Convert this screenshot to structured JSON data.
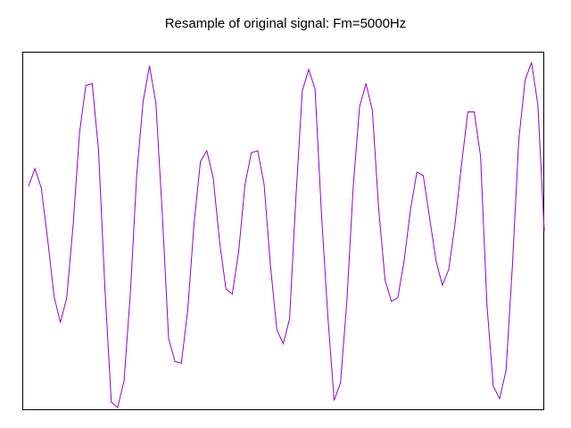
{
  "colors": {
    "background": "#ffffff",
    "frame": "#000000",
    "series": "#9400d3"
  },
  "chart_data": {
    "type": "line",
    "title": "Resample of original signal: Fm=5000Hz",
    "xlabel": "",
    "ylabel": "",
    "grid": false,
    "legend": "none",
    "x_unit": "sample index",
    "ylim": [
      -1.0,
      1.0
    ],
    "series": [
      {
        "color": "#9400d3",
        "values": [
          0.25,
          0.35,
          0.24,
          -0.05,
          -0.37,
          -0.52,
          -0.38,
          0.03,
          0.55,
          0.82,
          0.83,
          0.45,
          -0.33,
          -0.97,
          -1.0,
          -0.85,
          -0.35,
          0.32,
          0.73,
          0.93,
          0.72,
          0.1,
          -0.61,
          -0.74,
          -0.75,
          -0.45,
          0.04,
          0.39,
          0.45,
          0.3,
          -0.06,
          -0.33,
          -0.36,
          -0.12,
          0.26,
          0.44,
          0.45,
          0.26,
          -0.2,
          -0.56,
          -0.64,
          -0.5,
          0.19,
          0.79,
          0.91,
          0.8,
          0.1,
          -0.48,
          -0.96,
          -0.86,
          -0.4,
          0.25,
          0.7,
          0.83,
          0.68,
          0.12,
          -0.28,
          -0.4,
          -0.38,
          -0.17,
          0.12,
          0.33,
          0.31,
          0.07,
          -0.17,
          -0.31,
          -0.22,
          0.04,
          0.37,
          0.67,
          0.67,
          0.42,
          -0.42,
          -0.88,
          -0.95,
          -0.79,
          -0.2,
          0.51,
          0.85,
          0.95,
          0.71,
          0.0
        ]
      }
    ]
  }
}
